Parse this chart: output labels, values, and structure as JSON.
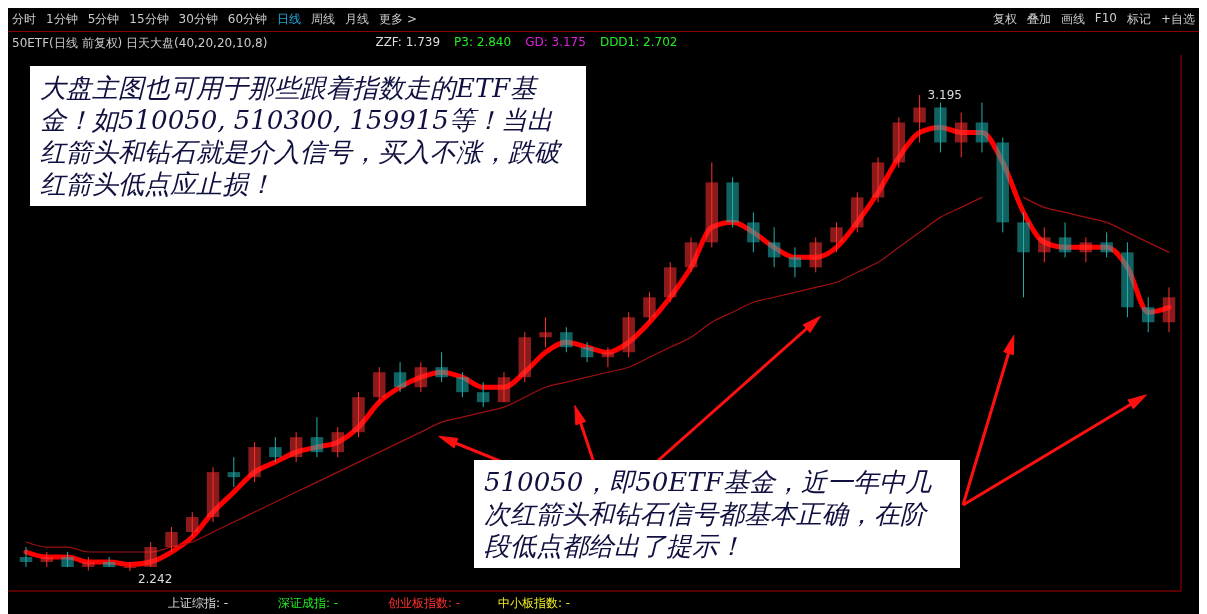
{
  "chart_data": {
    "type": "candlestick",
    "title": "50ETF(日线 前复权) 日天大盘(40,20,20,10,8)",
    "categories": [
      null,
      null,
      null,
      null,
      null,
      null,
      null,
      null,
      null,
      null,
      null,
      null,
      null,
      null,
      null,
      null,
      null,
      null,
      null,
      null,
      null,
      null,
      null,
      null,
      null,
      null,
      null,
      null,
      null,
      null,
      null,
      null,
      null,
      null,
      null,
      null,
      null,
      null,
      null,
      null,
      null,
      null,
      null,
      null,
      null,
      null,
      null,
      null,
      null,
      null,
      null,
      null,
      null,
      null,
      null,
      null
    ],
    "ohlc": [
      [
        2.27,
        2.29,
        2.25,
        2.26
      ],
      [
        2.26,
        2.28,
        2.25,
        2.27
      ],
      [
        2.27,
        2.28,
        2.25,
        2.25
      ],
      [
        2.25,
        2.27,
        2.243,
        2.26
      ],
      [
        2.26,
        2.27,
        2.25,
        2.25
      ],
      [
        2.25,
        2.26,
        2.242,
        2.25
      ],
      [
        2.25,
        2.3,
        2.25,
        2.29
      ],
      [
        2.29,
        2.33,
        2.28,
        2.32
      ],
      [
        2.32,
        2.36,
        2.31,
        2.35
      ],
      [
        2.35,
        2.45,
        2.34,
        2.44
      ],
      [
        2.44,
        2.47,
        2.41,
        2.43
      ],
      [
        2.43,
        2.5,
        2.42,
        2.49
      ],
      [
        2.49,
        2.51,
        2.46,
        2.47
      ],
      [
        2.47,
        2.52,
        2.46,
        2.51
      ],
      [
        2.51,
        2.55,
        2.47,
        2.48
      ],
      [
        2.48,
        2.53,
        2.47,
        2.52
      ],
      [
        2.52,
        2.6,
        2.51,
        2.59
      ],
      [
        2.59,
        2.65,
        2.58,
        2.64
      ],
      [
        2.64,
        2.66,
        2.6,
        2.61
      ],
      [
        2.61,
        2.66,
        2.6,
        2.65
      ],
      [
        2.65,
        2.68,
        2.62,
        2.63
      ],
      [
        2.63,
        2.64,
        2.59,
        2.6
      ],
      [
        2.6,
        2.62,
        2.57,
        2.58
      ],
      [
        2.58,
        2.64,
        2.58,
        2.63
      ],
      [
        2.63,
        2.72,
        2.62,
        2.71
      ],
      [
        2.71,
        2.75,
        2.69,
        2.72
      ],
      [
        2.72,
        2.73,
        2.68,
        2.69
      ],
      [
        2.69,
        2.7,
        2.66,
        2.67
      ],
      [
        2.67,
        2.69,
        2.65,
        2.68
      ],
      [
        2.68,
        2.76,
        2.67,
        2.75
      ],
      [
        2.75,
        2.8,
        2.74,
        2.79
      ],
      [
        2.79,
        2.86,
        2.78,
        2.85
      ],
      [
        2.85,
        2.91,
        2.84,
        2.9
      ],
      [
        2.9,
        3.06,
        2.89,
        3.02
      ],
      [
        3.02,
        3.03,
        2.93,
        2.94
      ],
      [
        2.94,
        2.96,
        2.88,
        2.9
      ],
      [
        2.9,
        2.93,
        2.85,
        2.87
      ],
      [
        2.87,
        2.89,
        2.83,
        2.85
      ],
      [
        2.85,
        2.91,
        2.84,
        2.9
      ],
      [
        2.9,
        2.94,
        2.88,
        2.93
      ],
      [
        2.93,
        3.0,
        2.92,
        2.99
      ],
      [
        2.99,
        3.07,
        2.98,
        3.06
      ],
      [
        3.06,
        3.15,
        3.05,
        3.14
      ],
      [
        3.14,
        3.195,
        3.1,
        3.17
      ],
      [
        3.17,
        3.18,
        3.08,
        3.1
      ],
      [
        3.1,
        3.16,
        3.07,
        3.14
      ],
      [
        3.14,
        3.18,
        3.08,
        3.1
      ],
      [
        3.1,
        3.11,
        2.92,
        2.94
      ],
      [
        2.94,
        2.96,
        2.79,
        2.88
      ],
      [
        2.88,
        2.93,
        2.86,
        2.91
      ],
      [
        2.91,
        2.94,
        2.87,
        2.88
      ],
      [
        2.88,
        2.91,
        2.86,
        2.9
      ],
      [
        2.9,
        2.92,
        2.87,
        2.88
      ],
      [
        2.88,
        2.9,
        2.75,
        2.77
      ],
      [
        2.77,
        2.79,
        2.72,
        2.74
      ],
      [
        2.74,
        2.81,
        2.72,
        2.79
      ]
    ],
    "series": [
      {
        "type": "line",
        "color": "#ff0000",
        "values": [
          2.28,
          2.27,
          2.27,
          2.26,
          2.26,
          2.255,
          2.26,
          2.28,
          2.31,
          2.36,
          2.4,
          2.44,
          2.46,
          2.48,
          2.49,
          2.5,
          2.53,
          2.58,
          2.61,
          2.63,
          2.64,
          2.63,
          2.61,
          2.61,
          2.64,
          2.68,
          2.7,
          2.69,
          2.68,
          2.7,
          2.74,
          2.79,
          2.85,
          2.93,
          2.94,
          2.92,
          2.89,
          2.87,
          2.87,
          2.89,
          2.94,
          3.0,
          3.07,
          3.12,
          3.13,
          3.12,
          3.12,
          3.06,
          2.96,
          2.9,
          2.89,
          2.89,
          2.89,
          2.85,
          2.76,
          2.77
        ]
      },
      {
        "type": "line",
        "color": "#a01010",
        "values": [
          2.3,
          2.29,
          2.29,
          2.28,
          2.28,
          2.28,
          2.28,
          2.29,
          2.3,
          2.32,
          2.34,
          2.36,
          2.38,
          2.4,
          2.42,
          2.44,
          2.46,
          2.48,
          2.5,
          2.52,
          2.54,
          2.55,
          2.56,
          2.57,
          2.59,
          2.61,
          2.62,
          2.63,
          2.64,
          2.65,
          2.67,
          2.69,
          2.71,
          2.74,
          2.76,
          2.78,
          2.79,
          2.8,
          2.81,
          2.82,
          2.84,
          2.86,
          2.89,
          2.92,
          2.95,
          2.97,
          2.99,
          null,
          2.99,
          2.97,
          2.96,
          2.95,
          2.94,
          2.92,
          2.9,
          2.88
        ]
      }
    ],
    "annotations": [
      "大盘主图也可用于那些跟着指数走的ETF基金！如510050, 510300, 159915等！当出红箭头和钻石就是介入信号，买入不涨，跌破红箭头低点应止损！",
      "510050，即50ETF基金，近一年中几次红箭头和钻石信号都基本正确，在阶段低点都给出了提示！",
      "3.195",
      "2.242",
      "分时",
      "1分钟",
      "5分钟",
      "15分钟",
      "30分钟",
      "60分钟",
      "日线",
      "周线",
      "月线",
      "更多 >",
      "复权",
      "叠加",
      "画线",
      "F10",
      "标记",
      "+自选",
      "ZZF: 1.739",
      "P3: 2.840",
      "GD: 3.175",
      "DDD1: 2.702",
      "上证综指: -",
      "深证成指: -",
      "创业板指数: -",
      "中小板指数: -"
    ]
  }
}
